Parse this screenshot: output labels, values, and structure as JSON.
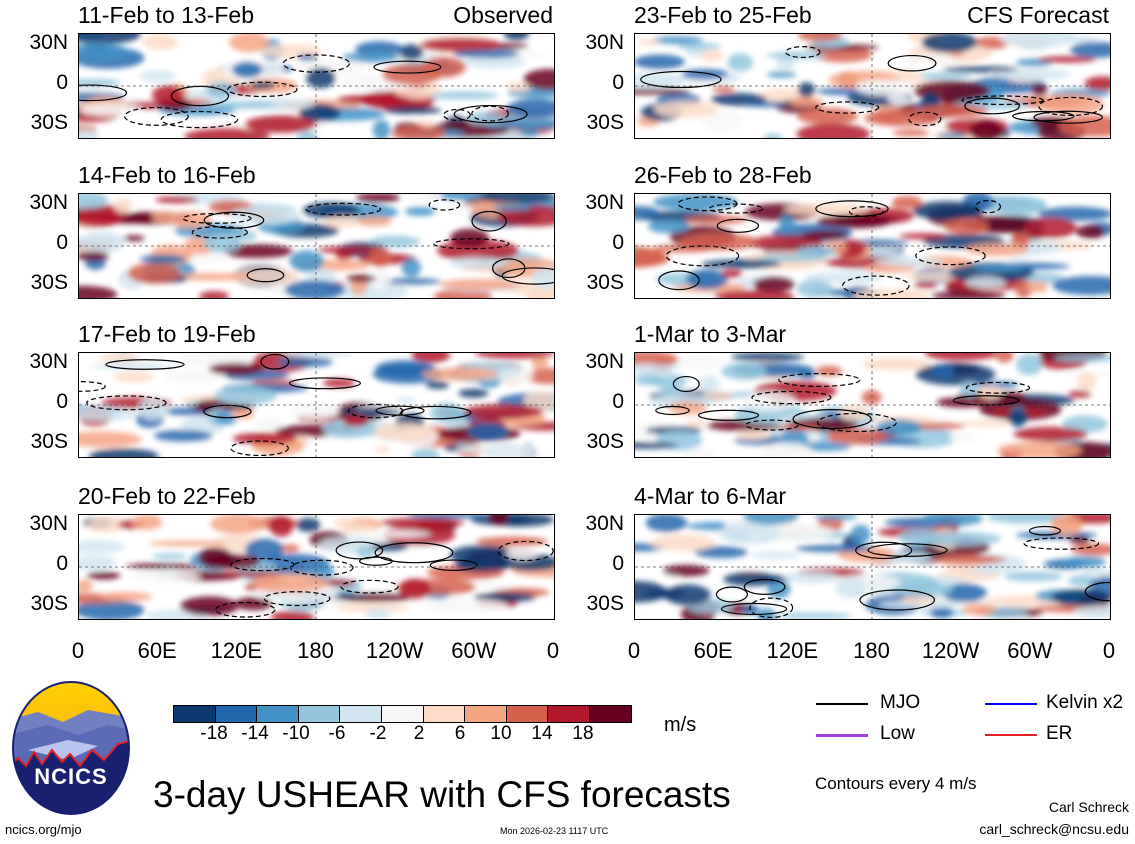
{
  "panels": [
    {
      "title": "11-Feb to 13-Feb",
      "label": "Observed"
    },
    {
      "title": "23-Feb to 25-Feb",
      "label": "CFS Forecast"
    },
    {
      "title": "14-Feb to 16-Feb",
      "label": ""
    },
    {
      "title": "26-Feb to 28-Feb",
      "label": ""
    },
    {
      "title": "17-Feb to 19-Feb",
      "label": ""
    },
    {
      "title": "1-Mar to 3-Mar",
      "label": ""
    },
    {
      "title": "20-Feb to 22-Feb",
      "label": ""
    },
    {
      "title": "4-Mar to 6-Mar",
      "label": ""
    }
  ],
  "y_ticks": [
    "30N",
    "0",
    "30S"
  ],
  "x_ticks": [
    "0",
    "60E",
    "120E",
    "180",
    "120W",
    "60W",
    "0"
  ],
  "colorbar": {
    "colors": [
      "#0b3a6e",
      "#2367ad",
      "#4292c6",
      "#92c5de",
      "#d1e5f0",
      "#f7f7f7",
      "#fddbc7",
      "#f4a582",
      "#d6604d",
      "#b2182b",
      "#67001f"
    ],
    "labels": [
      "-18",
      "-14",
      "-10",
      "-6",
      "-2",
      "2",
      "6",
      "10",
      "14",
      "18"
    ],
    "units": "m/s"
  },
  "legend": {
    "items": [
      {
        "label": "MJO",
        "color": "#000000"
      },
      {
        "label": "Kelvin x2",
        "color": "#0000ff"
      },
      {
        "label": "Low",
        "color": "#a040e0"
      },
      {
        "label": "ER",
        "color": "#e02020"
      }
    ],
    "contours_note": "Contours every 4 m/s"
  },
  "title": "3-day USHEAR with CFS forecasts",
  "logo_text": "NCICS",
  "footer": {
    "url": "ncics.org/mjo",
    "timestamp": "Mon 2026-02-23 1117 UTC",
    "author": "Carl Schreck",
    "email": "carl_schreck@ncsu.edu"
  }
}
